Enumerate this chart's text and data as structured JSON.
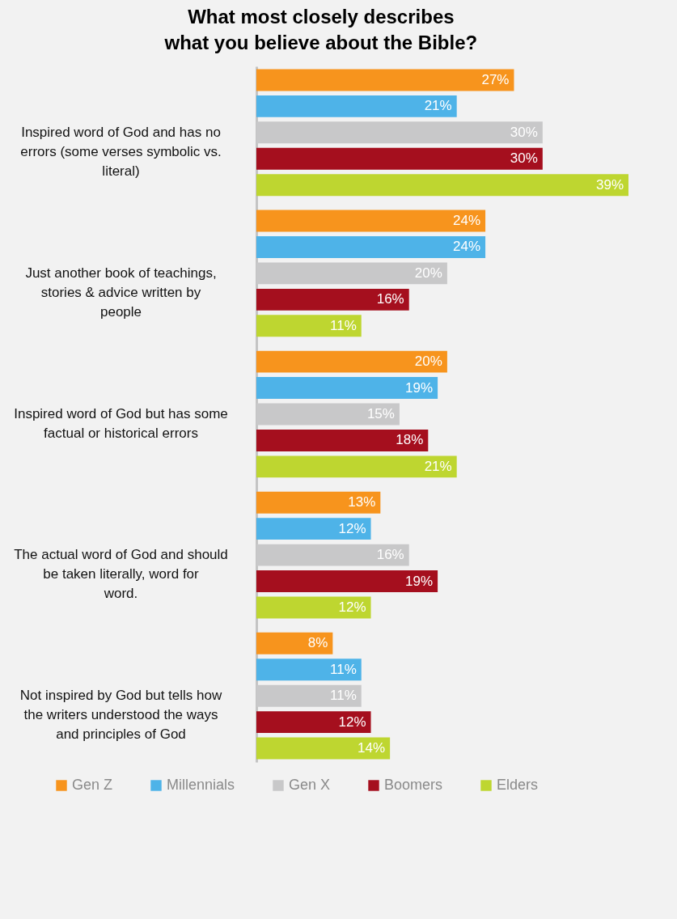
{
  "chart_data": {
    "type": "bar",
    "orientation": "horizontal",
    "title": "What most closely describes what you believe about the Bible?",
    "categories": [
      "Inspired word of God and has no errors (some verses symbolic vs. literal)",
      "Just another book of teachings, stories & advice written by people",
      "Inspired word of God but has some factual or historical errors",
      "The actual word of God and should be taken literally, word for word.",
      "Not inspired by God but tells how the writers  understood the ways and principles of God"
    ],
    "series": [
      {
        "name": "Gen Z",
        "color": "#f7941d",
        "values": [
          27,
          24,
          20,
          13,
          8
        ],
        "value_labels": [
          "27%",
          "24%",
          "20%",
          "13%",
          "8%"
        ]
      },
      {
        "name": "Millennials",
        "color": "#4eb3e8",
        "values": [
          21,
          24,
          19,
          12,
          11
        ],
        "value_labels": [
          "21%",
          "24%",
          "19%",
          "12%",
          "11%"
        ]
      },
      {
        "name": "Gen X",
        "color": "#c8c8c9",
        "values": [
          30,
          20,
          15,
          16,
          11
        ],
        "value_labels": [
          "30%",
          "20%",
          "15%",
          "16%",
          "11%"
        ]
      },
      {
        "name": "Boomers",
        "color": "#a50f1e",
        "values": [
          30,
          16,
          18,
          19,
          12
        ],
        "value_labels": [
          "30%",
          "16%",
          "18%",
          "19%",
          "12%"
        ]
      },
      {
        "name": "Elders",
        "color": "#bed630",
        "values": [
          39,
          11,
          21,
          12,
          14
        ],
        "value_labels": [
          "39%",
          "11%",
          "21%",
          "12%",
          "14%"
        ]
      }
    ],
    "legend": "bottom",
    "tick_labels": "y"
  }
}
